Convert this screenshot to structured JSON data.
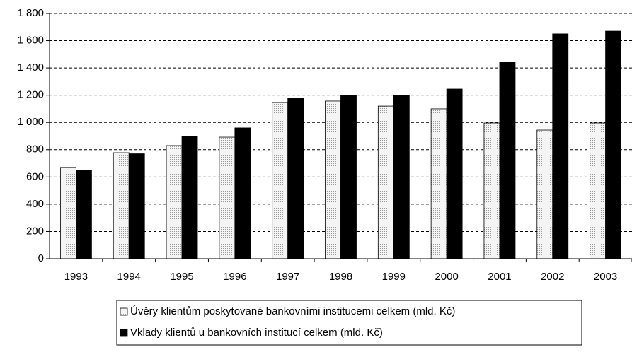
{
  "chart_data": {
    "type": "bar",
    "categories": [
      "1993",
      "1994",
      "1995",
      "1996",
      "1997",
      "1998",
      "1999",
      "2000",
      "2001",
      "2002",
      "2003"
    ],
    "series": [
      {
        "name": "Úvěry klientům poskytované bankovními institucemi celkem (mld. Kč)",
        "color": "#e6e6e6",
        "values": [
          670,
          778,
          830,
          892,
          1146,
          1157,
          1120,
          1100,
          996,
          944,
          996
        ]
      },
      {
        "name": "Vklady klientů u bankovních institucí celkem (mld. Kč)",
        "color": "#000000",
        "values": [
          650,
          770,
          900,
          960,
          1180,
          1200,
          1200,
          1245,
          1440,
          1650,
          1670
        ]
      }
    ],
    "ylim": [
      0,
      1800
    ],
    "yticks": [
      0,
      200,
      400,
      600,
      800,
      {
        "value": 1000,
        "label": "1 000"
      },
      {
        "value": 1200,
        "label": "1 200"
      },
      {
        "value": 1400,
        "label": "1 400"
      },
      {
        "value": 1600,
        "label": "1 600"
      },
      {
        "value": 1800,
        "label": "1 800"
      }
    ],
    "grid": true
  }
}
